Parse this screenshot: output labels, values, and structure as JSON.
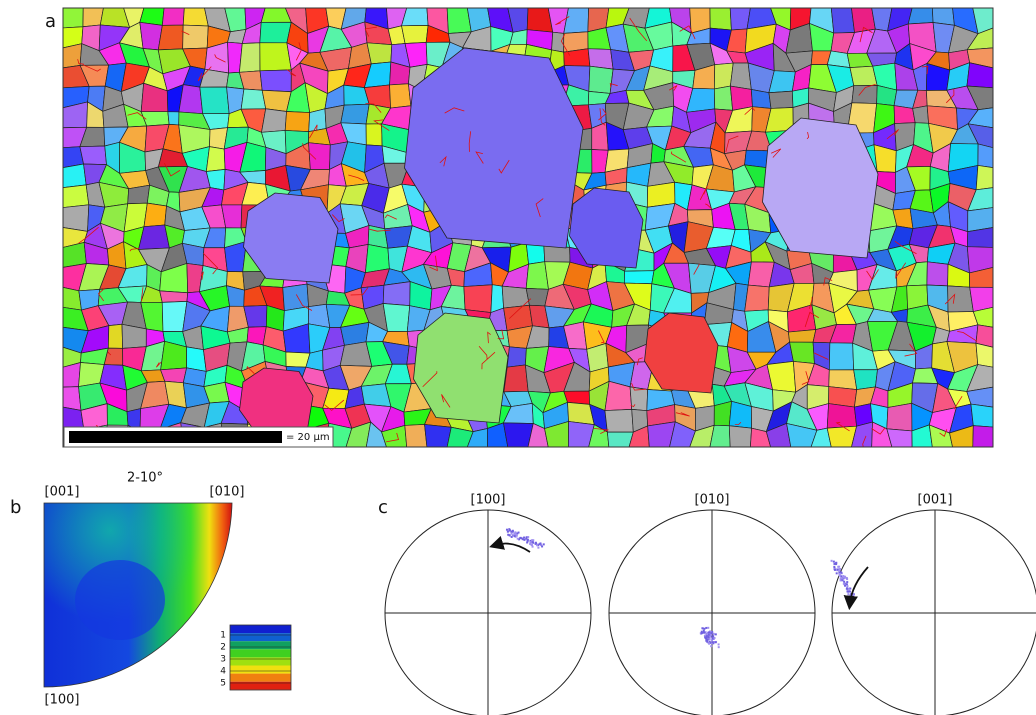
{
  "panels": {
    "a": {
      "label": "a",
      "scale_bar": "= 20 µm"
    },
    "b": {
      "label": "b",
      "title": "2-10°",
      "corners": {
        "top_left": "[001]",
        "top_right": "[010]",
        "bottom": "[100]"
      },
      "legend": [
        "1",
        "2",
        "3",
        "4",
        "5"
      ]
    },
    "c": {
      "label": "c",
      "poles": [
        "[100]",
        "[010]",
        "[001]"
      ]
    }
  }
}
